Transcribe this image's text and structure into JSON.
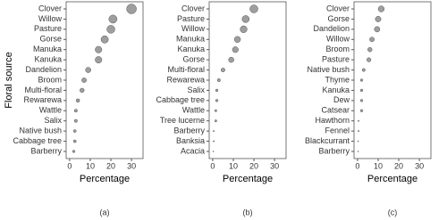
{
  "chart_data": [
    {
      "type": "dot",
      "ylabel": "Floral source",
      "xlabel": "Percentage",
      "caption": "(a)",
      "categories": [
        "Clover",
        "Willow",
        "Pasture",
        "Gorse",
        "Manuka",
        "Kanuka",
        "Dandelion",
        "Broom",
        "Multi-floral",
        "Rewarewa",
        "Wattle",
        "Salix",
        "Native bush",
        "Cabbage tree",
        "Barberry"
      ],
      "values": [
        30,
        21,
        20,
        17,
        14,
        14,
        9,
        7,
        6,
        4,
        3,
        3,
        2.5,
        2.5,
        2
      ],
      "xlim": [
        -1.7,
        35.6
      ],
      "xticks": [
        0,
        10,
        20,
        30
      ],
      "color": "#9e9e9e"
    },
    {
      "type": "dot",
      "xlabel": "Percentage",
      "caption": "(b)",
      "categories": [
        "Clover",
        "Pasture",
        "Willow",
        "Manuka",
        "Kanuka",
        "Gorse",
        "Multi-floral",
        "Rewarewa",
        "Salix",
        "Cabbage tree",
        "Wattle",
        "Tree lucerne",
        "Barberry",
        "Banksia",
        "Acacia"
      ],
      "values": [
        20,
        16,
        15,
        12,
        11,
        9,
        5,
        3,
        2,
        2,
        1.5,
        1.5,
        0.5,
        0.5,
        0.3
      ],
      "xlim": [
        -1.7,
        35.6
      ],
      "xticks": [
        0,
        10,
        20,
        30
      ],
      "color": "#9e9e9e"
    },
    {
      "type": "dot",
      "xlabel": "Percentage",
      "caption": "(c)",
      "categories": [
        "Clover",
        "Gorse",
        "Dandelion",
        "Willow",
        "Broom",
        "Pasture",
        "Native bush",
        "Thyme",
        "Kanuka",
        "Dew",
        "Catsear",
        "Hawthorn",
        "Fennel",
        "Blackcurrant",
        "Barberry"
      ],
      "values": [
        11.5,
        10,
        9.5,
        7,
        6,
        5.5,
        3,
        2,
        2,
        2,
        2,
        0.5,
        0.5,
        0.3,
        0.3
      ],
      "xlim": [
        -1.7,
        35.6
      ],
      "xticks": [
        0,
        10,
        20,
        30
      ],
      "color": "#9e9e9e"
    }
  ]
}
